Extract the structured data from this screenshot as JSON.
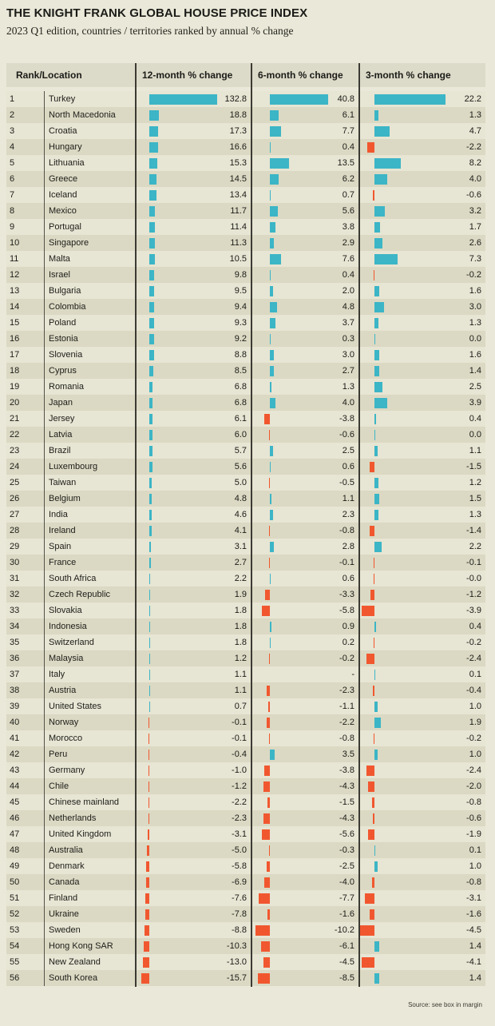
{
  "title": "THE KNIGHT FRANK GLOBAL HOUSE PRICE INDEX",
  "subtitle": "2023 Q1 edition, countries / territories ranked by annual % change",
  "source_note": "Source: see box in margin",
  "colors": {
    "positive_bar": "#3cb5c6",
    "negative_bar": "#f1572f",
    "background": "#eae8d8",
    "row_alt": "#dbd9c3",
    "header_bg": "#dcdac8",
    "divider": "#3b3a33"
  },
  "table": {
    "columns": [
      "Rank/Location",
      "12-month % change",
      "6-month % change",
      "3-month % change"
    ]
  },
  "chart_data": {
    "type": "table",
    "title": "THE KNIGHT FRANK GLOBAL HOUSE PRICE INDEX",
    "subtitle": "2023 Q1 edition, countries / territories ranked by annual % change",
    "columns": [
      "Rank",
      "Location",
      "12-month % change",
      "6-month % change",
      "3-month % change"
    ],
    "bar_style": "horizontal bars per change column, normalized to each column max; positive teal extends right of baseline, negative red extends left",
    "rows": [
      {
        "rank": "1",
        "location": "Turkey",
        "change_12m": "132.8",
        "change_6m": "40.8",
        "change_3m": "22.2"
      },
      {
        "rank": "2",
        "location": "North Macedonia",
        "change_12m": "18.8",
        "change_6m": "6.1",
        "change_3m": "1.3"
      },
      {
        "rank": "3",
        "location": "Croatia",
        "change_12m": "17.3",
        "change_6m": "7.7",
        "change_3m": "4.7"
      },
      {
        "rank": "4",
        "location": "Hungary",
        "change_12m": "16.6",
        "change_6m": "0.4",
        "change_3m": "-2.2"
      },
      {
        "rank": "5",
        "location": "Lithuania",
        "change_12m": "15.3",
        "change_6m": "13.5",
        "change_3m": "8.2"
      },
      {
        "rank": "6",
        "location": "Greece",
        "change_12m": "14.5",
        "change_6m": "6.2",
        "change_3m": "4.0"
      },
      {
        "rank": "7",
        "location": "Iceland",
        "change_12m": "13.4",
        "change_6m": "0.7",
        "change_3m": "-0.6"
      },
      {
        "rank": "8",
        "location": "Mexico",
        "change_12m": "11.7",
        "change_6m": "5.6",
        "change_3m": "3.2"
      },
      {
        "rank": "9",
        "location": "Portugal",
        "change_12m": "11.4",
        "change_6m": "3.8",
        "change_3m": "1.7"
      },
      {
        "rank": "10",
        "location": "Singapore",
        "change_12m": "11.3",
        "change_6m": "2.9",
        "change_3m": "2.6"
      },
      {
        "rank": "11",
        "location": "Malta",
        "change_12m": "10.5",
        "change_6m": "7.6",
        "change_3m": "7.3"
      },
      {
        "rank": "12",
        "location": "Israel",
        "change_12m": "9.8",
        "change_6m": "0.4",
        "change_3m": "-0.2"
      },
      {
        "rank": "13",
        "location": "Bulgaria",
        "change_12m": "9.5",
        "change_6m": "2.0",
        "change_3m": "1.6"
      },
      {
        "rank": "14",
        "location": "Colombia",
        "change_12m": "9.4",
        "change_6m": "4.8",
        "change_3m": "3.0"
      },
      {
        "rank": "15",
        "location": "Poland",
        "change_12m": "9.3",
        "change_6m": "3.7",
        "change_3m": "1.3"
      },
      {
        "rank": "16",
        "location": "Estonia",
        "change_12m": "9.2",
        "change_6m": "0.3",
        "change_3m": "0.0"
      },
      {
        "rank": "17",
        "location": "Slovenia",
        "change_12m": "8.8",
        "change_6m": "3.0",
        "change_3m": "1.6"
      },
      {
        "rank": "18",
        "location": "Cyprus",
        "change_12m": "8.5",
        "change_6m": "2.7",
        "change_3m": "1.4"
      },
      {
        "rank": "19",
        "location": "Romania",
        "change_12m": "6.8",
        "change_6m": "1.3",
        "change_3m": "2.5"
      },
      {
        "rank": "20",
        "location": "Japan",
        "change_12m": "6.8",
        "change_6m": "4.0",
        "change_3m": "3.9"
      },
      {
        "rank": "21",
        "location": "Jersey",
        "change_12m": "6.1",
        "change_6m": "-3.8",
        "change_3m": "0.4"
      },
      {
        "rank": "22",
        "location": "Latvia",
        "change_12m": "6.0",
        "change_6m": "-0.6",
        "change_3m": "0.0"
      },
      {
        "rank": "23",
        "location": "Brazil",
        "change_12m": "5.7",
        "change_6m": "2.5",
        "change_3m": "1.1"
      },
      {
        "rank": "24",
        "location": "Luxembourg",
        "change_12m": "5.6",
        "change_6m": "0.6",
        "change_3m": "-1.5"
      },
      {
        "rank": "25",
        "location": "Taiwan",
        "change_12m": "5.0",
        "change_6m": "-0.5",
        "change_3m": "1.2"
      },
      {
        "rank": "26",
        "location": "Belgium",
        "change_12m": "4.8",
        "change_6m": "1.1",
        "change_3m": "1.5"
      },
      {
        "rank": "27",
        "location": "India",
        "change_12m": "4.6",
        "change_6m": "2.3",
        "change_3m": "1.3"
      },
      {
        "rank": "28",
        "location": "Ireland",
        "change_12m": "4.1",
        "change_6m": "-0.8",
        "change_3m": "-1.4"
      },
      {
        "rank": "29",
        "location": "Spain",
        "change_12m": "3.1",
        "change_6m": "2.8",
        "change_3m": "2.2"
      },
      {
        "rank": "30",
        "location": "France",
        "change_12m": "2.7",
        "change_6m": "-0.1",
        "change_3m": "-0.1"
      },
      {
        "rank": "31",
        "location": "South Africa",
        "change_12m": "2.2",
        "change_6m": "0.6",
        "change_3m": "-0.0"
      },
      {
        "rank": "32",
        "location": "Czech Republic",
        "change_12m": "1.9",
        "change_6m": "-3.3",
        "change_3m": "-1.2"
      },
      {
        "rank": "33",
        "location": "Slovakia",
        "change_12m": "1.8",
        "change_6m": "-5.8",
        "change_3m": "-3.9"
      },
      {
        "rank": "34",
        "location": "Indonesia",
        "change_12m": "1.8",
        "change_6m": "0.9",
        "change_3m": "0.4"
      },
      {
        "rank": "35",
        "location": "Switzerland",
        "change_12m": "1.8",
        "change_6m": "0.2",
        "change_3m": "-0.2"
      },
      {
        "rank": "36",
        "location": "Malaysia",
        "change_12m": "1.2",
        "change_6m": "-0.2",
        "change_3m": "-2.4"
      },
      {
        "rank": "37",
        "location": "Italy",
        "change_12m": "1.1",
        "change_6m": "-",
        "change_3m": "0.1"
      },
      {
        "rank": "38",
        "location": "Austria",
        "change_12m": "1.1",
        "change_6m": "-2.3",
        "change_3m": "-0.4"
      },
      {
        "rank": "39",
        "location": "United States",
        "change_12m": "0.7",
        "change_6m": "-1.1",
        "change_3m": "1.0"
      },
      {
        "rank": "40",
        "location": "Norway",
        "change_12m": "-0.1",
        "change_6m": "-2.2",
        "change_3m": "1.9"
      },
      {
        "rank": "41",
        "location": "Morocco",
        "change_12m": "-0.1",
        "change_6m": "-0.8",
        "change_3m": "-0.2"
      },
      {
        "rank": "42",
        "location": "Peru",
        "change_12m": "-0.4",
        "change_6m": "3.5",
        "change_3m": "1.0"
      },
      {
        "rank": "43",
        "location": "Germany",
        "change_12m": "-1.0",
        "change_6m": "-3.8",
        "change_3m": "-2.4"
      },
      {
        "rank": "44",
        "location": "Chile",
        "change_12m": "-1.2",
        "change_6m": "-4.3",
        "change_3m": "-2.0"
      },
      {
        "rank": "45",
        "location": "Chinese mainland",
        "change_12m": "-2.2",
        "change_6m": "-1.5",
        "change_3m": "-0.8"
      },
      {
        "rank": "46",
        "location": "Netherlands",
        "change_12m": "-2.3",
        "change_6m": "-4.3",
        "change_3m": "-0.6"
      },
      {
        "rank": "47",
        "location": "United Kingdom",
        "change_12m": "-3.1",
        "change_6m": "-5.6",
        "change_3m": "-1.9"
      },
      {
        "rank": "48",
        "location": "Australia",
        "change_12m": "-5.0",
        "change_6m": "-0.3",
        "change_3m": "0.1"
      },
      {
        "rank": "49",
        "location": "Denmark",
        "change_12m": "-5.8",
        "change_6m": "-2.5",
        "change_3m": "1.0"
      },
      {
        "rank": "50",
        "location": "Canada",
        "change_12m": "-6.9",
        "change_6m": "-4.0",
        "change_3m": "-0.8"
      },
      {
        "rank": "51",
        "location": "Finland",
        "change_12m": "-7.6",
        "change_6m": "-7.7",
        "change_3m": "-3.1"
      },
      {
        "rank": "52",
        "location": "Ukraine",
        "change_12m": "-7.8",
        "change_6m": "-1.6",
        "change_3m": "-1.6"
      },
      {
        "rank": "53",
        "location": "Sweden",
        "change_12m": "-8.8",
        "change_6m": "-10.2",
        "change_3m": "-4.5"
      },
      {
        "rank": "54",
        "location": "Hong Kong SAR",
        "change_12m": "-10.3",
        "change_6m": "-6.1",
        "change_3m": "1.4"
      },
      {
        "rank": "55",
        "location": "New Zealand",
        "change_12m": "-13.0",
        "change_6m": "-4.5",
        "change_3m": "-4.1"
      },
      {
        "rank": "56",
        "location": "South Korea",
        "change_12m": "-15.7",
        "change_6m": "-8.5",
        "change_3m": "1.4"
      }
    ]
  }
}
